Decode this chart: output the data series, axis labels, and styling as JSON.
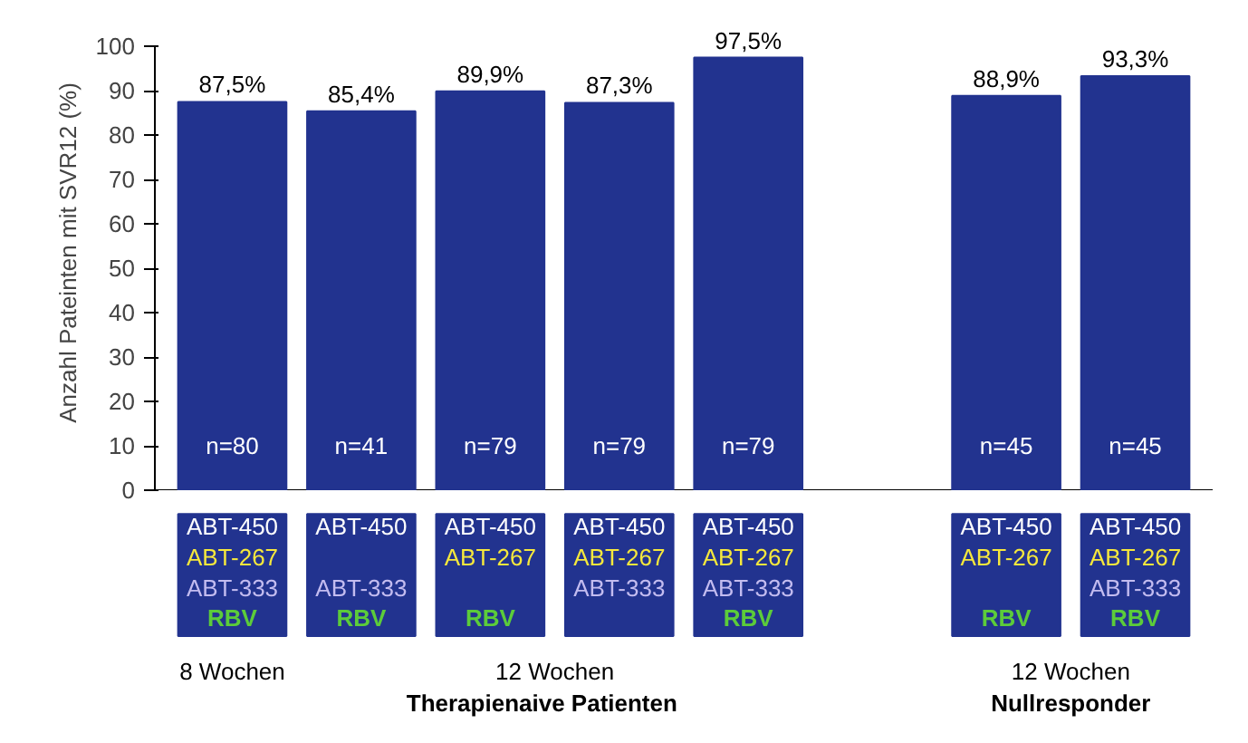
{
  "chart_data": {
    "type": "bar",
    "ylabel": "Anzahl Pateinten mit SVR12 (%)",
    "categories": [
      "ABT-450\nABT-267\nABT-333\nRBV",
      "ABT-450\n\nABT-333\nRBV",
      "ABT-450\nABT-267\n\nRBV",
      "ABT-450\nABT-267\nABT-333\n",
      "ABT-450\nABT-267\nABT-333\nRBV",
      null,
      "ABT-450\nABT-267\n\nRBV",
      "ABT-450\nABT-267\nABT-333\nRBV"
    ],
    "values": [
      87.5,
      85.4,
      89.9,
      87.3,
      97.5,
      null,
      88.9,
      93.3
    ],
    "value_labels": [
      "87,5%",
      "85,4%",
      "89,9%",
      "87,3%",
      "97,5%",
      null,
      "88,9%",
      "93,3%"
    ],
    "color": "#22338f",
    "ylim": [
      0,
      100
    ],
    "yticks": [
      0,
      10,
      20,
      30,
      40,
      50,
      60,
      70,
      80,
      90,
      100
    ],
    "grid": false,
    "annotations": [
      "n=80",
      "n=41",
      "n=79",
      "n=79",
      "n=79",
      "n=45",
      "n=45",
      "8 Wochen",
      "12 Wochen",
      "Therapienaive Patienten",
      "12 Wochen",
      "Nullresponder"
    ]
  }
}
